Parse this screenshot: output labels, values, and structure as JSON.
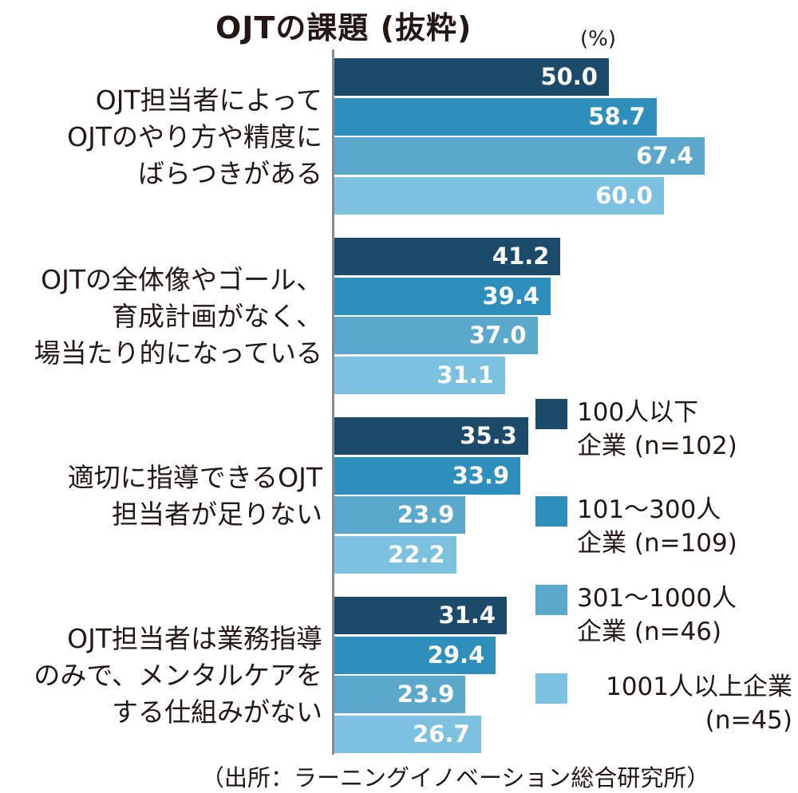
{
  "chart_data": {
    "type": "bar",
    "orientation": "horizontal",
    "title": "OJTの課題 (抜粋)",
    "unit": "(%)",
    "xlim": [
      0,
      100
    ],
    "grid": false,
    "legend_position": "bottom-right",
    "categories": [
      "OJT担当者によって\nOJTのやり方や精度に\nばらつきがある",
      "OJTの全体像やゴール、\n育成計画がなく、\n場当たり的になっている",
      "適切に指導できるOJT\n担当者が足りない",
      "OJT担当者は業務指導\nのみで、メンタルケアを\nする仕組みがない"
    ],
    "series": [
      {
        "name": "100人以下\n企業 (n=102)",
        "color": "#1c4a6b",
        "values": [
          50.0,
          41.2,
          35.3,
          31.4
        ],
        "labels": [
          "50.0",
          "41.2",
          "35.3",
          "31.4"
        ]
      },
      {
        "name": "101〜300人\n企業 (n=109)",
        "color": "#2e8fbd",
        "values": [
          58.7,
          39.4,
          33.9,
          29.4
        ],
        "labels": [
          "58.7",
          "39.4",
          "33.9",
          "29.4"
        ]
      },
      {
        "name": "301〜1000人\n企業 (n=46)",
        "color": "#5aa9cc",
        "values": [
          67.4,
          37.0,
          23.9,
          23.9
        ],
        "labels": [
          "67.4",
          "37.0",
          "23.9",
          "23.9"
        ]
      },
      {
        "name": "1001人以上企業\n(n=45)",
        "color": "#7cc2e0",
        "values": [
          60.0,
          31.1,
          22.2,
          26.7
        ],
        "labels": [
          "60.0",
          "31.1",
          "22.2",
          "26.7"
        ]
      }
    ],
    "source": "（出所：ラーニングイノベーション総合研究所）"
  }
}
